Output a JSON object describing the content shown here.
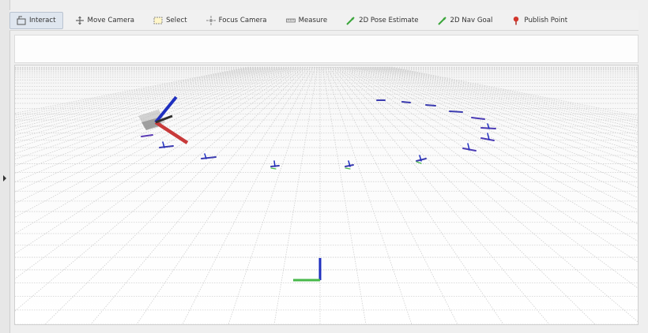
{
  "toolbar": {
    "tools": [
      {
        "name": "interact",
        "label": "Interact",
        "icon": "cursor-icon",
        "active": true
      },
      {
        "name": "move-camera",
        "label": "Move Camera",
        "icon": "move-camera-icon",
        "active": false
      },
      {
        "name": "select",
        "label": "Select",
        "icon": "select-icon",
        "active": false
      },
      {
        "name": "focus-camera",
        "label": "Focus Camera",
        "icon": "focus-camera-icon",
        "active": false
      },
      {
        "name": "measure",
        "label": "Measure",
        "icon": "ruler-icon",
        "active": false
      },
      {
        "name": "2d-pose-estimate",
        "label": "2D Pose Estimate",
        "icon": "green-arrow-icon",
        "active": false
      },
      {
        "name": "2d-nav-goal",
        "label": "2D Nav Goal",
        "icon": "green-arrow-icon",
        "active": false
      },
      {
        "name": "publish-point",
        "label": "Publish Point",
        "icon": "map-pin-icon",
        "active": false
      }
    ]
  },
  "colors": {
    "grid": "#cfcfcf",
    "axis_red": "#c83a3a",
    "axis_green": "#47b84a",
    "axis_blue": "#1f2fbf"
  }
}
